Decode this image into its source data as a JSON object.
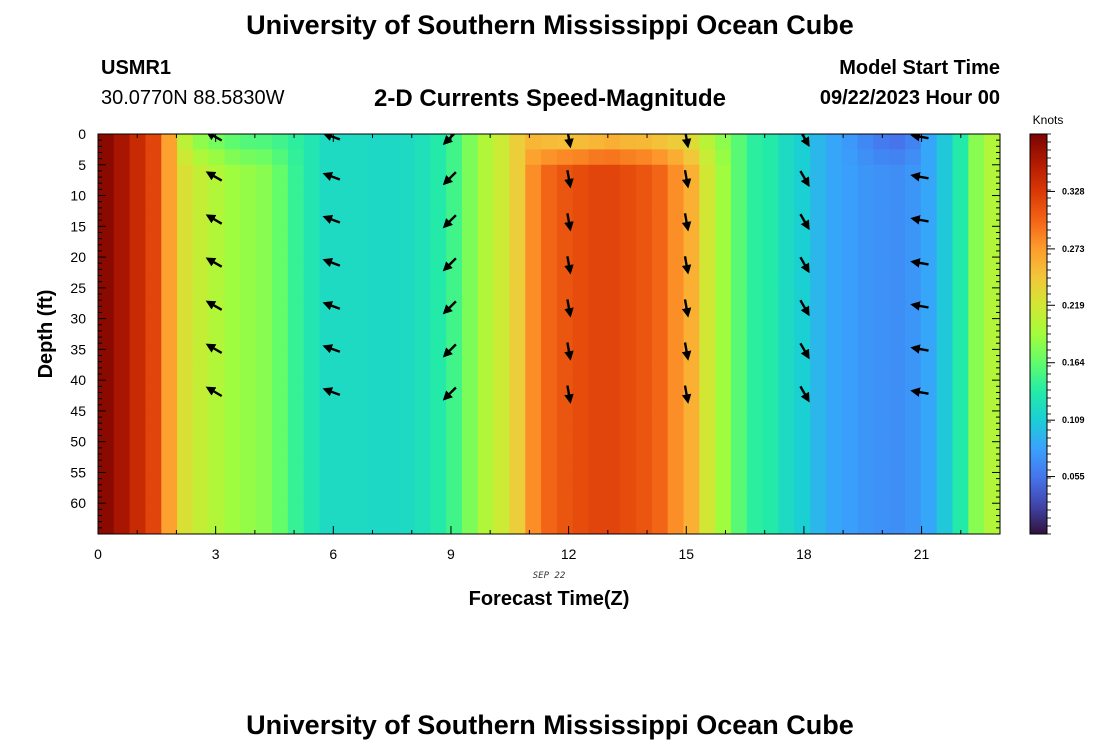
{
  "header": {
    "title": "University of Southern Mississippi Ocean Cube",
    "station": "USMR1",
    "coords": "30.0770N  88.5830W",
    "subtitle": "2-D Currents Speed-Magnitude",
    "start_label": "Model Start Time",
    "start_value": "09/22/2023 Hour 00"
  },
  "footer": {
    "title": "University of Southern Mississippi Ocean Cube"
  },
  "chart_data": {
    "type": "heatmap",
    "title": "2-D Currents Speed-Magnitude",
    "xlabel": "Forecast Time(Z)",
    "ylabel": "Depth (ft)",
    "date_label": "SEP 22",
    "xlim": [
      0,
      23
    ],
    "ylim": [
      0,
      65
    ],
    "x_ticks": [
      0,
      3,
      6,
      9,
      12,
      15,
      18,
      21
    ],
    "y_ticks": [
      0,
      5,
      10,
      15,
      20,
      25,
      30,
      35,
      40,
      45,
      50,
      55,
      60
    ],
    "colorbar": {
      "label": "Knots",
      "range": [
        0.0,
        0.383
      ],
      "ticks": [
        0.055,
        0.109,
        0.164,
        0.219,
        0.273,
        0.328
      ],
      "colormap": [
        "#30123b",
        "#4145ab",
        "#4675ed",
        "#39a2fc",
        "#1bcfd4",
        "#24eca6",
        "#61fc6c",
        "#a4fc3b",
        "#d1e834",
        "#f3c63a",
        "#fe9b2d",
        "#f36315",
        "#d93806",
        "#b11901",
        "#7a0403"
      ]
    },
    "speed_by_hour": [
      0.375,
      0.36,
      0.34,
      0.32,
      0.27,
      0.225,
      0.21,
      0.2,
      0.19,
      0.185,
      0.18,
      0.165,
      0.145,
      0.13,
      0.12,
      0.12,
      0.12,
      0.118,
      0.118,
      0.12,
      0.125,
      0.135,
      0.15,
      0.175,
      0.2,
      0.215,
      0.24,
      0.28,
      0.3,
      0.31,
      0.315,
      0.32,
      0.32,
      0.315,
      0.31,
      0.3,
      0.28,
      0.26,
      0.22,
      0.19,
      0.16,
      0.14,
      0.135,
      0.12,
      0.11,
      0.095,
      0.085,
      0.08,
      0.075,
      0.072,
      0.07,
      0.075,
      0.085,
      0.105,
      0.135,
      0.18,
      0.2
    ],
    "surface_speed_by_hour": [
      0.375,
      0.36,
      0.34,
      0.32,
      0.27,
      0.2,
      0.175,
      0.165,
      0.155,
      0.15,
      0.15,
      0.145,
      0.14,
      0.13,
      0.12,
      0.12,
      0.12,
      0.118,
      0.118,
      0.12,
      0.125,
      0.135,
      0.15,
      0.175,
      0.2,
      0.215,
      0.24,
      0.25,
      0.24,
      0.235,
      0.235,
      0.24,
      0.245,
      0.24,
      0.24,
      0.235,
      0.23,
      0.22,
      0.2,
      0.18,
      0.16,
      0.14,
      0.135,
      0.12,
      0.11,
      0.095,
      0.085,
      0.075,
      0.065,
      0.055,
      0.05,
      0.06,
      0.085,
      0.105,
      0.135,
      0.18,
      0.2
    ],
    "vectors": {
      "hours": [
        3,
        6,
        9,
        12,
        15,
        18,
        21
      ],
      "depths_ft": [
        0,
        7,
        14,
        21,
        28,
        35,
        42
      ],
      "direction_deg": [
        210,
        200,
        135,
        80,
        80,
        60,
        190
      ]
    }
  }
}
